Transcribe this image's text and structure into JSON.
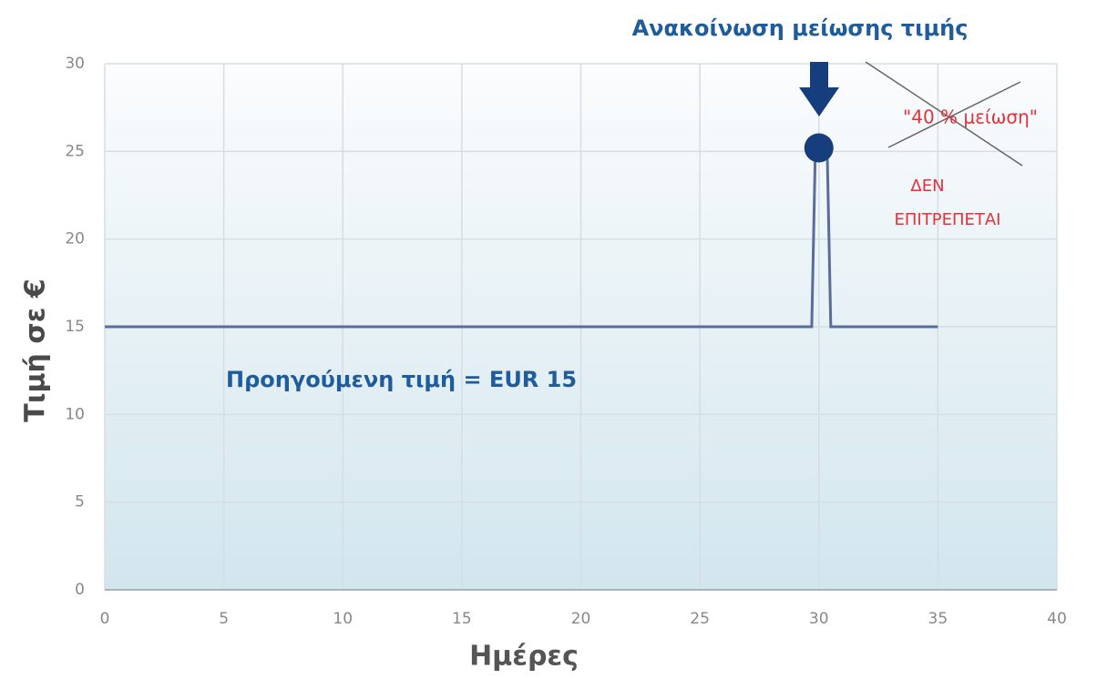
{
  "chart_data": {
    "type": "line",
    "xlabel": "Ημέρες",
    "ylabel": "Τιμή σε €",
    "series": [
      {
        "color": "#5a6b9e",
        "x": [
          0,
          29.7,
          29.85,
          30.35,
          30.5,
          35
        ],
        "values": [
          15,
          15,
          25,
          25,
          15,
          15
        ]
      }
    ],
    "highlight": {
      "x": 30,
      "y": 25.2,
      "color": "#173e7c"
    },
    "xlim": [
      0,
      40
    ],
    "xticks": [
      0,
      5,
      10,
      15,
      20,
      25,
      30,
      35,
      40
    ],
    "ylim": [
      0,
      30
    ],
    "yticks": [
      0,
      5,
      10,
      15,
      20,
      25,
      30
    ],
    "grid": true,
    "annotations": [
      {
        "text": "Ανακοίνωση μείωσης τιμής",
        "color": "#1f5c9c"
      },
      {
        "text": "\"40 % μείωση\"",
        "color": "#e8303a"
      },
      {
        "text": "ΔΕΝ",
        "color": "#e8303a"
      },
      {
        "text": "ΕΠΙΤΡΕΠΕΤΑΙ",
        "color": "#e8303a"
      },
      {
        "text": "Προηγούμενη τιμή  = EUR 15",
        "color": "#1f5c9c"
      }
    ]
  }
}
